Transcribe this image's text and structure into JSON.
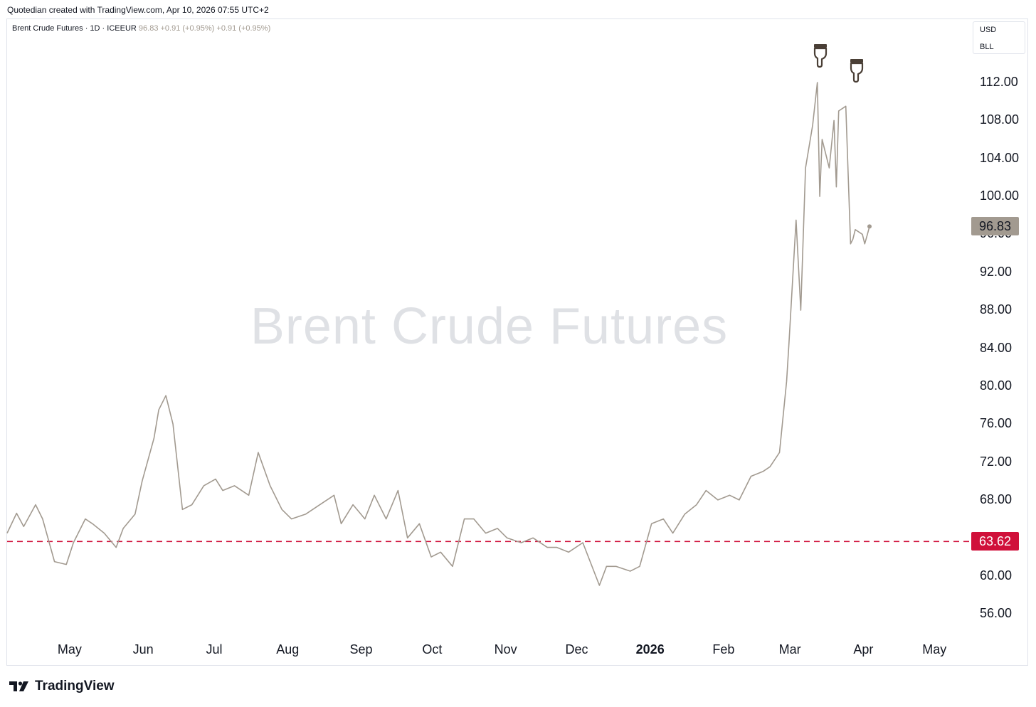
{
  "header": {
    "created_by": "Quotedian created with TradingView.com, Apr 10, 2026 07:55 UTC+2"
  },
  "legend": {
    "symbol": "Brent Crude Futures · 1D · ICEEUR",
    "last": "96.83",
    "change1": "+0.91 (+0.95%)",
    "change2": "+0.91 (+0.95%)"
  },
  "currency": {
    "line1": "USD",
    "line2": "BLL"
  },
  "watermark": "Brent Crude Futures",
  "footer": {
    "brand": "TradingView"
  },
  "colors": {
    "line": "#a29a90",
    "support": "#d0103a",
    "last_tag_bg": "#a29a90"
  },
  "icons": [
    "pointing-hand-down-icon",
    "pointing-hand-down-icon",
    "tradingview-logo-icon"
  ],
  "chart_data": {
    "type": "line",
    "y_ticks": [
      "112.00",
      "108.00",
      "104.00",
      "100.00",
      "96.00",
      "92.00",
      "88.00",
      "84.00",
      "80.00",
      "76.00",
      "72.00",
      "68.00",
      "64.00",
      "60.00",
      "56.00"
    ],
    "x_ticks": [
      "May",
      "Jun",
      "Jul",
      "Aug",
      "Sep",
      "Oct",
      "Nov",
      "Dec",
      "2026",
      "Feb",
      "Mar",
      "Apr",
      "May"
    ],
    "ylim": [
      53.5,
      117.5
    ],
    "grid": false,
    "support_level": 63.62,
    "support_label": "63.62",
    "last_value": 96.83,
    "last_label": "96.83",
    "series": [
      {
        "x": [
          "2025-04-10",
          "2025-04-14",
          "2025-04-17",
          "2025-04-22",
          "2025-04-25",
          "2025-04-30",
          "2025-05-05",
          "2025-05-08",
          "2025-05-13",
          "2025-05-16",
          "2025-05-21",
          "2025-05-26",
          "2025-05-29",
          "2025-06-03",
          "2025-06-06",
          "2025-06-11",
          "2025-06-13",
          "2025-06-16",
          "2025-06-19",
          "2025-06-23",
          "2025-06-27",
          "2025-07-02",
          "2025-07-07",
          "2025-07-10",
          "2025-07-15",
          "2025-07-21",
          "2025-07-25",
          "2025-07-30",
          "2025-08-04",
          "2025-08-08",
          "2025-08-14",
          "2025-08-20",
          "2025-08-26",
          "2025-08-29",
          "2025-09-03",
          "2025-09-08",
          "2025-09-12",
          "2025-09-17",
          "2025-09-22",
          "2025-09-26",
          "2025-10-01",
          "2025-10-06",
          "2025-10-10",
          "2025-10-15",
          "2025-10-20",
          "2025-10-24",
          "2025-10-29",
          "2025-11-03",
          "2025-11-07",
          "2025-11-13",
          "2025-11-18",
          "2025-11-24",
          "2025-11-28",
          "2025-12-03",
          "2025-12-09",
          "2025-12-16",
          "2025-12-19",
          "2025-12-23",
          "2025-12-29",
          "2026-01-02",
          "2026-01-07",
          "2026-01-12",
          "2026-01-16",
          "2026-01-21",
          "2026-01-26",
          "2026-01-30",
          "2026-02-04",
          "2026-02-09",
          "2026-02-13",
          "2026-02-18",
          "2026-02-23",
          "2026-02-26",
          "2026-03-02",
          "2026-03-05",
          "2026-03-06",
          "2026-03-09",
          "2026-03-11",
          "2026-03-13",
          "2026-03-16",
          "2026-03-18",
          "2026-03-19",
          "2026-03-20",
          "2026-03-23",
          "2026-03-25",
          "2026-03-26",
          "2026-03-27",
          "2026-03-30",
          "2026-04-01",
          "2026-04-02",
          "2026-04-03",
          "2026-04-06",
          "2026-04-07",
          "2026-04-08",
          "2026-04-09"
        ],
        "values": [
          64.5,
          66.6,
          65.2,
          67.5,
          66.0,
          61.5,
          61.2,
          63.5,
          66.0,
          65.5,
          64.5,
          63.0,
          65.0,
          66.5,
          70.0,
          74.5,
          77.5,
          79.0,
          76.0,
          67.0,
          67.5,
          69.5,
          70.2,
          69.0,
          69.5,
          68.5,
          73.0,
          69.5,
          67.0,
          66.0,
          66.5,
          67.5,
          68.5,
          65.5,
          67.5,
          66.0,
          68.5,
          66.0,
          69.0,
          64.0,
          65.5,
          62.0,
          62.5,
          61.0,
          66.0,
          66.0,
          64.5,
          65.0,
          64.0,
          63.5,
          64.0,
          63.0,
          63.0,
          62.5,
          63.5,
          59.0,
          61.0,
          61.0,
          60.5,
          61.0,
          65.5,
          66.0,
          64.5,
          66.5,
          67.5,
          69.0,
          68.0,
          68.5,
          68.0,
          70.5,
          71.0,
          71.5,
          73.0,
          80.5,
          84.5,
          97.5,
          88.0,
          103.0,
          107.5,
          112.0,
          100.0,
          106.0,
          103.0,
          108.0,
          101.0,
          109.0,
          109.5,
          95.0,
          95.5,
          96.5,
          96.0,
          95.0,
          95.9,
          96.83
        ]
      }
    ]
  }
}
